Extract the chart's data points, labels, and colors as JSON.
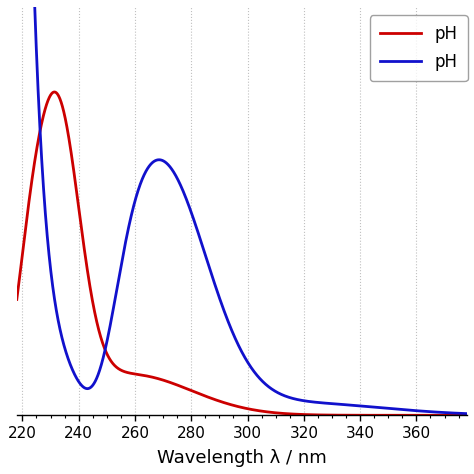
{
  "title": "",
  "xlabel": "Wavelength λ / nm",
  "ylabel": "",
  "xlim": [
    218,
    378
  ],
  "ylim": [
    0,
    1.0
  ],
  "xticks": [
    220,
    240,
    260,
    280,
    300,
    320,
    340,
    360
  ],
  "legend_labels": [
    "pH",
    "pH"
  ],
  "line_colors": [
    "#cc0000",
    "#1111cc"
  ],
  "grid_color": "#c0c0c0",
  "background_color": "#ffffff",
  "line_width": 2.0
}
